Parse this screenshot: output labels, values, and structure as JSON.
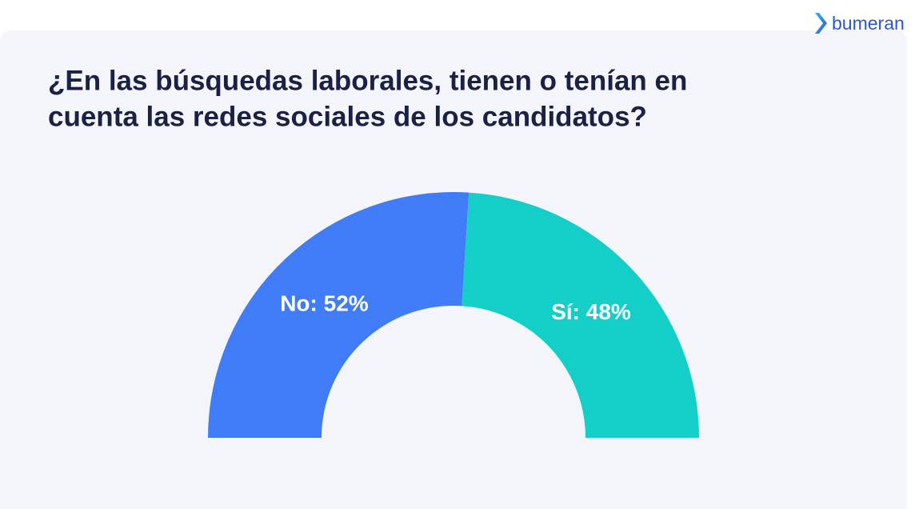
{
  "logo": "bumeran",
  "chart_data": {
    "type": "pie",
    "shape": "half-donut",
    "title": [
      "¿En las búsquedas laborales, tienen o tenían en",
      "cuenta las redes sociales de los candidatos?"
    ],
    "values": [
      52,
      48
    ],
    "value_labels": [
      "No: 52%",
      "Sí: 48%"
    ],
    "colors": [
      "#3f7cf6",
      "#14cfc8"
    ]
  }
}
